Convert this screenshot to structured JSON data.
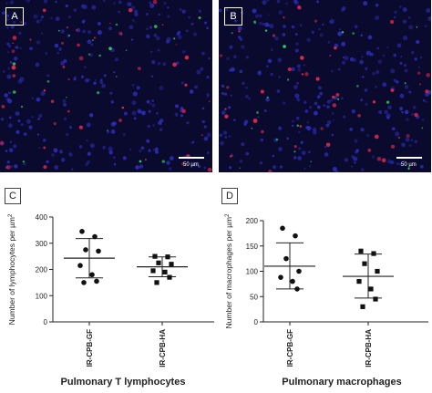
{
  "panels": {
    "a": {
      "letter": "A",
      "scale_bar": "50 µm"
    },
    "b": {
      "letter": "B",
      "scale_bar": "50 µm"
    }
  },
  "chart_data": [
    {
      "type": "scatter",
      "panel_letter": "C",
      "title": "Pulmonary T lymphocytes",
      "ylabel": "Number of lymphocytes per µm",
      "ylabel_superscript": "2",
      "ylim": [
        0,
        400
      ],
      "yticks": [
        0,
        100,
        200,
        300,
        400
      ],
      "categories": [
        "IR-CPB-GF",
        "IR-CPB-HA"
      ],
      "series": [
        {
          "marker": "circle",
          "values": [
            345,
            325,
            275,
            270,
            215,
            180,
            155,
            150
          ],
          "mean": 243,
          "sd_low": 168,
          "sd_high": 318
        },
        {
          "marker": "square",
          "values": [
            250,
            248,
            225,
            220,
            195,
            190,
            170,
            150
          ],
          "mean": 210,
          "sd_low": 172,
          "sd_high": 248
        }
      ]
    },
    {
      "type": "scatter",
      "panel_letter": "D",
      "title": "Pulmonary macrophages",
      "ylabel": "Number of macrophages per µm",
      "ylabel_superscript": "2",
      "ylim": [
        0,
        200
      ],
      "yticks": [
        0,
        50,
        100,
        150,
        200
      ],
      "categories": [
        "IR-CPB-GF",
        "IR-CPB-HA"
      ],
      "series": [
        {
          "marker": "circle",
          "values": [
            185,
            170,
            125,
            100,
            88,
            80,
            65
          ],
          "mean": 110,
          "sd_low": 65,
          "sd_high": 156
        },
        {
          "marker": "square",
          "values": [
            140,
            135,
            115,
            100,
            80,
            65,
            45,
            30
          ],
          "mean": 90,
          "sd_low": 47,
          "sd_high": 134
        }
      ]
    }
  ],
  "colors": {
    "micro_bg": "#0a0a2e",
    "nuclei": "#3030c8",
    "red_marker": "#e0284a",
    "green_marker": "#30d060",
    "ink": "#222222"
  }
}
